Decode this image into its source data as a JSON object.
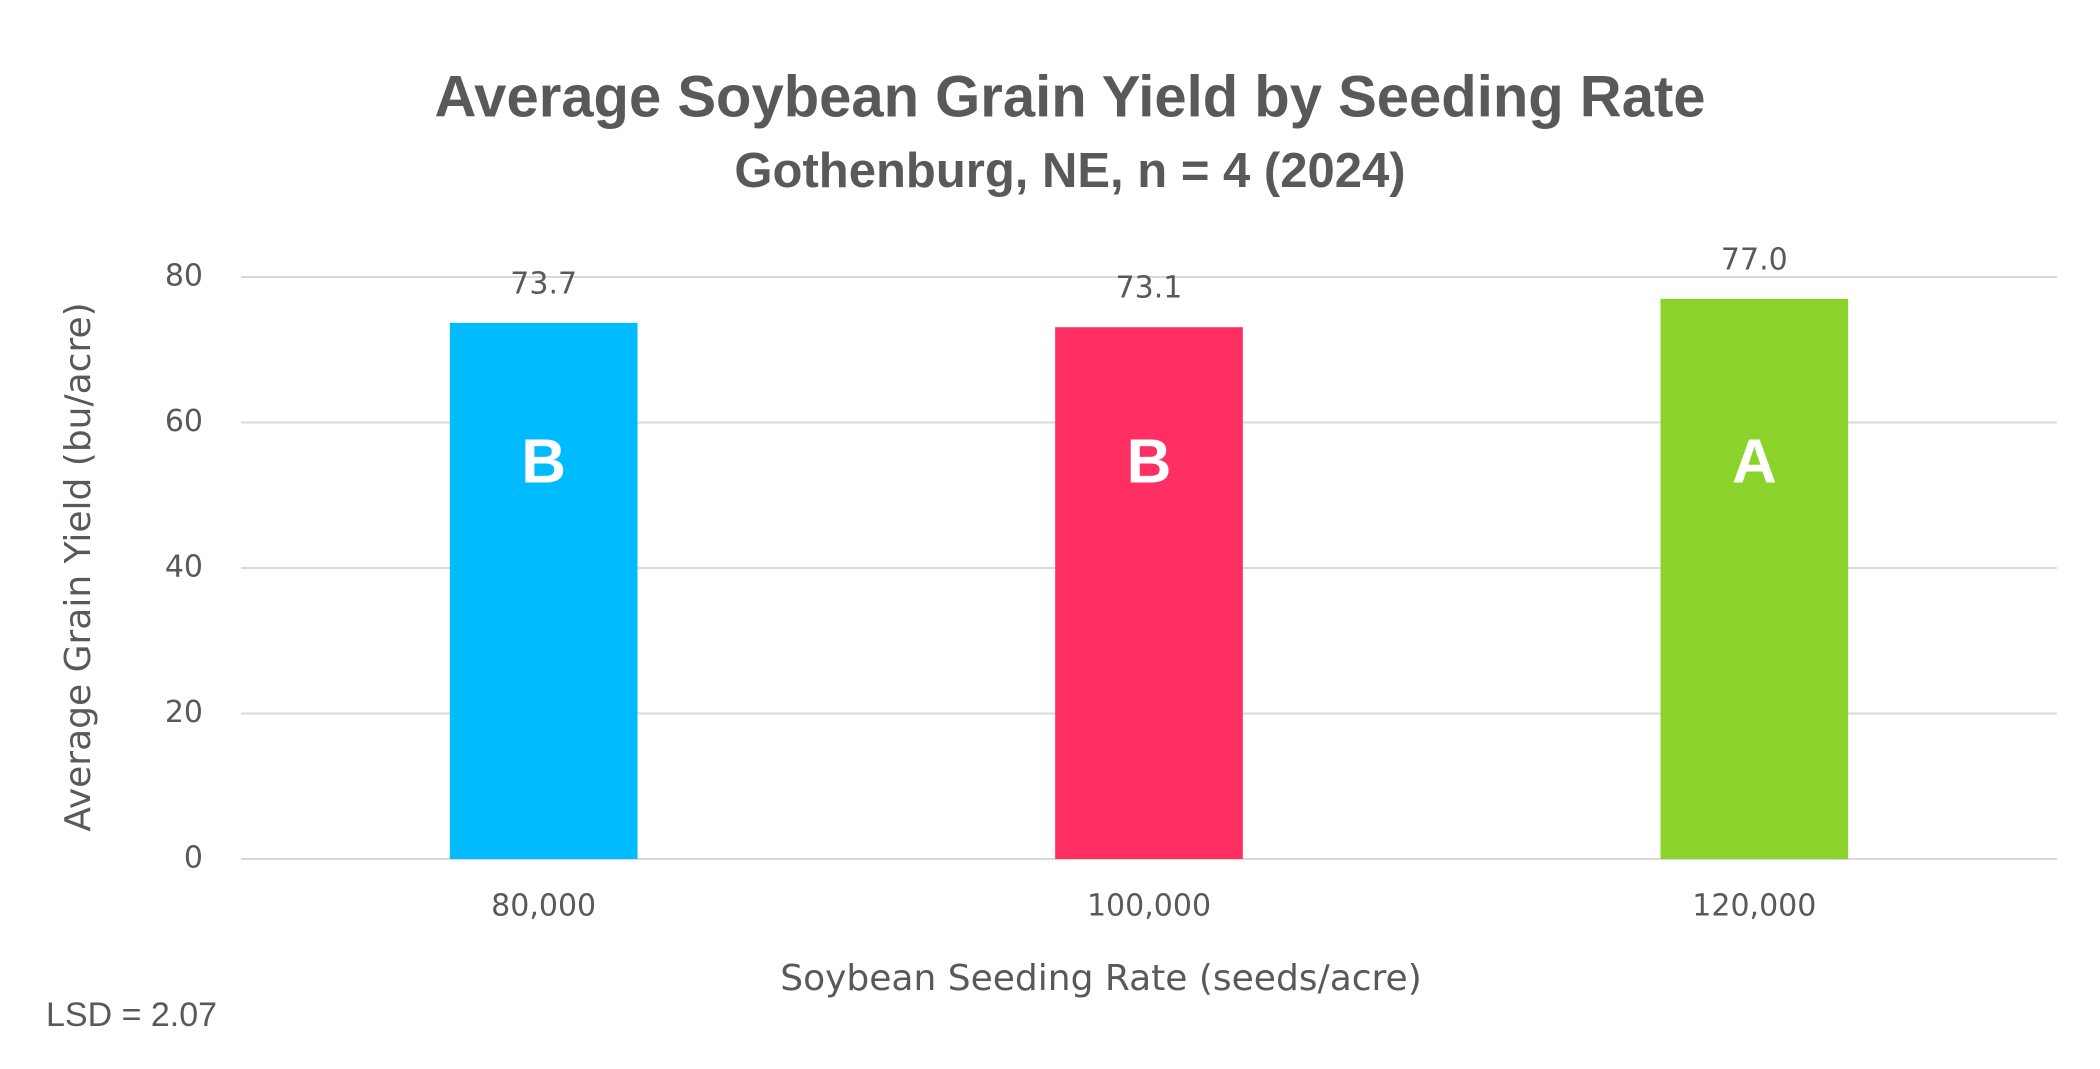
{
  "chart_data": {
    "type": "bar",
    "title": "Average Soybean Grain Yield by Seeding Rate",
    "subtitle": "Gothenburg, NE, n = 4 (2024)",
    "x_label": "Soybean Seeding Rate (seeds/acre)",
    "y_label": "Average Grain Yield (bu/acre)",
    "categories": [
      "80,000",
      "100,000",
      "120,000"
    ],
    "values": [
      73.7,
      73.1,
      77.0
    ],
    "value_labels": [
      "73.7",
      "73.1",
      "77.0"
    ],
    "bar_labels": [
      "B",
      "B",
      "A"
    ],
    "colors": [
      "#00bbfd",
      "#ff2f64",
      "#8bd32a"
    ],
    "ylim": [
      0,
      80
    ],
    "yticks": [
      0,
      20,
      40,
      60,
      80
    ],
    "grid": true,
    "annotation": "LSD = 2.07"
  }
}
